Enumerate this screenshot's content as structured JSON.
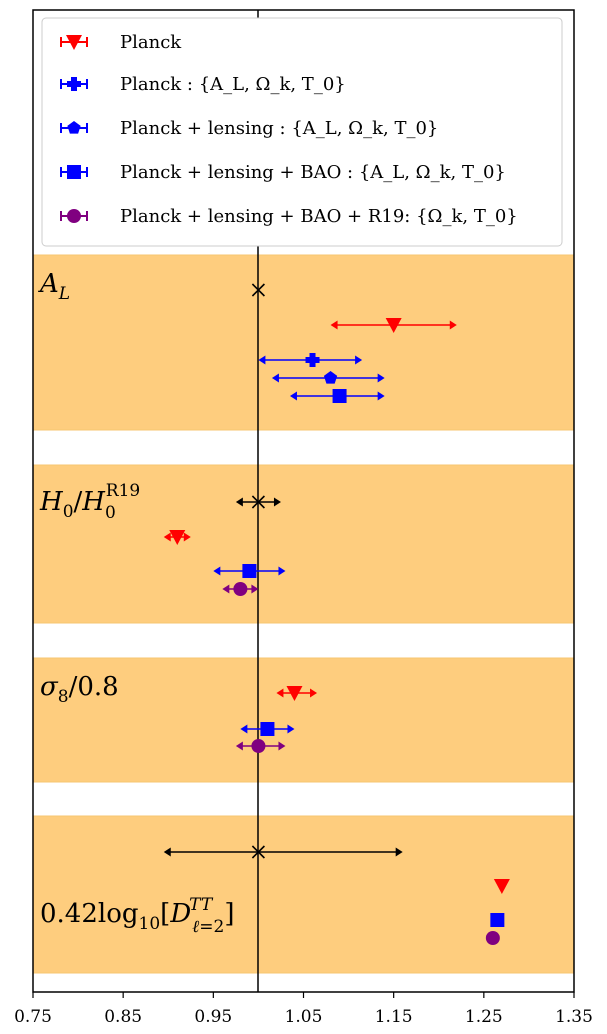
{
  "chart_data": {
    "type": "scatter",
    "description_kind": "error-bar whisker plot",
    "xlim": [
      0.75,
      1.35
    ],
    "x_ticks": [
      "0.75",
      "0.85",
      "0.95",
      "1.05",
      "1.15",
      "1.25",
      "1.35"
    ],
    "reference_x": 1.0,
    "legend": {
      "placement": "top",
      "entries": [
        {
          "series": "planck",
          "label": "Planck",
          "marker": "triangle-down",
          "color": "#ff0000"
        },
        {
          "series": "planck_free",
          "label": "Planck : {A_L, Ω_k, T_0}",
          "marker": "plus",
          "color": "#0000ff"
        },
        {
          "series": "planck_lensing",
          "label": "Planck + lensing : {A_L, Ω_k, T_0}",
          "marker": "pentagon",
          "color": "#0000ff"
        },
        {
          "series": "planck_lensing_bao",
          "label": "Planck + lensing + BAO : {A_L, Ω_k, T_0}",
          "marker": "square",
          "color": "#0000ff"
        },
        {
          "series": "planck_lensing_bao_r19",
          "label": "Planck + lensing + BAO + R19: {Ω_k, T_0}",
          "marker": "circle",
          "color": "#800080"
        }
      ]
    },
    "panels": [
      {
        "label": "A_L",
        "points": [
          {
            "series": "reference",
            "x": 1.0,
            "lo": null,
            "hi": null,
            "marker": "x",
            "color": "#000000"
          },
          {
            "series": "planck",
            "x": 1.15,
            "lo": 1.08,
            "hi": 1.22,
            "marker": "triangle-down",
            "color": "#ff0000"
          },
          {
            "series": "planck_free",
            "x": 1.06,
            "lo": 1.0,
            "hi": 1.115,
            "marker": "plus",
            "color": "#0000ff"
          },
          {
            "series": "planck_lensing",
            "x": 1.08,
            "lo": 1.015,
            "hi": 1.14,
            "marker": "pentagon",
            "color": "#0000ff"
          },
          {
            "series": "planck_lensing_bao",
            "x": 1.09,
            "lo": 1.035,
            "hi": 1.14,
            "marker": "square",
            "color": "#0000ff"
          }
        ]
      },
      {
        "label": "H_0/H_0^R19",
        "points": [
          {
            "series": "reference",
            "x": 1.0,
            "lo": 0.975,
            "hi": 1.025,
            "marker": "x",
            "color": "#000000"
          },
          {
            "series": "planck",
            "x": 0.91,
            "lo": 0.895,
            "hi": 0.925,
            "marker": "triangle-down",
            "color": "#ff0000"
          },
          {
            "series": "planck_lensing_bao",
            "x": 0.99,
            "lo": 0.95,
            "hi": 1.03,
            "marker": "square",
            "color": "#0000ff"
          },
          {
            "series": "planck_lensing_bao_r19",
            "x": 0.98,
            "lo": 0.96,
            "hi": 1.0,
            "marker": "circle",
            "color": "#800080"
          }
        ]
      },
      {
        "label": "σ_8/0.8",
        "points": [
          {
            "series": "planck",
            "x": 1.04,
            "lo": 1.02,
            "hi": 1.065,
            "marker": "triangle-down",
            "color": "#ff0000"
          },
          {
            "series": "planck_lensing_bao",
            "x": 1.01,
            "lo": 0.98,
            "hi": 1.04,
            "marker": "square",
            "color": "#0000ff"
          },
          {
            "series": "planck_lensing_bao_r19",
            "x": 1.0,
            "lo": 0.975,
            "hi": 1.03,
            "marker": "circle",
            "color": "#800080"
          }
        ]
      },
      {
        "label": "0.42log_10[D_ℓ=2^TT]",
        "points": [
          {
            "series": "reference",
            "x": 1.0,
            "lo": 0.895,
            "hi": 1.16,
            "marker": "x",
            "color": "#000000"
          },
          {
            "series": "planck",
            "x": 1.27,
            "lo": null,
            "hi": null,
            "marker": "triangle-down",
            "color": "#ff0000"
          },
          {
            "series": "planck_lensing_bao",
            "x": 1.265,
            "lo": null,
            "hi": null,
            "marker": "square",
            "color": "#0000ff"
          },
          {
            "series": "planck_lensing_bao_r19",
            "x": 1.26,
            "lo": null,
            "hi": null,
            "marker": "circle",
            "color": "#800080"
          }
        ]
      }
    ],
    "colors": {
      "band": "#fecd7e",
      "band_edge": "#f7c670",
      "reference_line": "#000000"
    }
  }
}
